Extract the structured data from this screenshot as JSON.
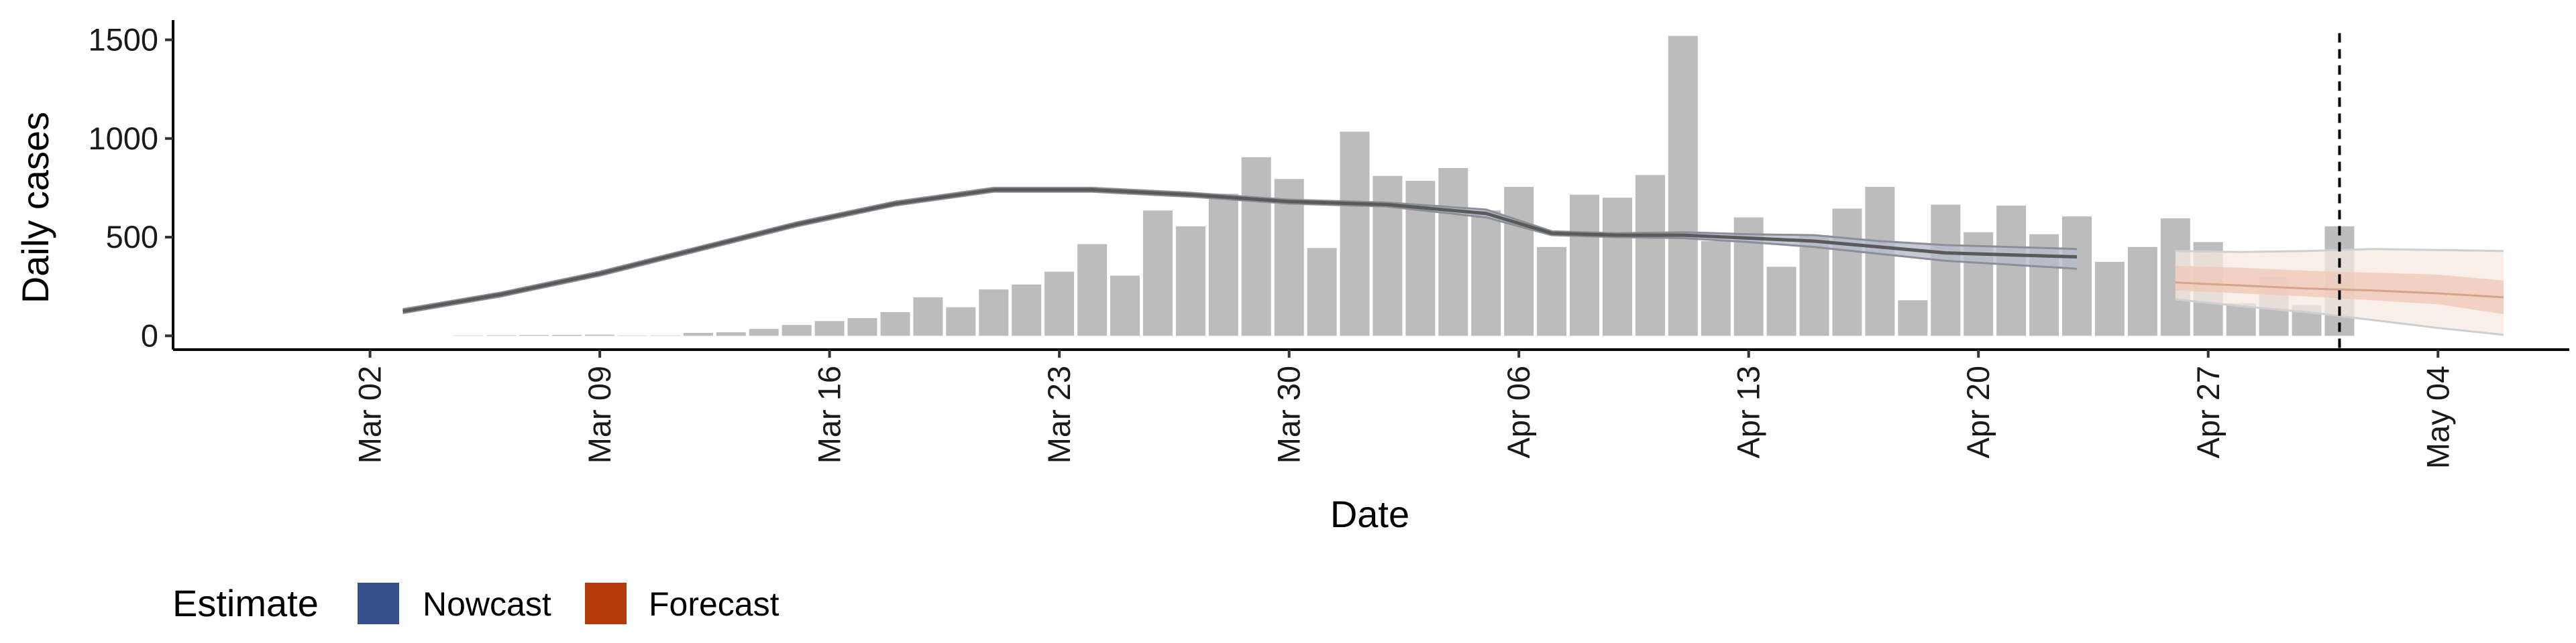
{
  "chart_data": {
    "type": "bar",
    "title": "",
    "xlabel": "Date",
    "ylabel": "Daily cases",
    "x_tick_labels": [
      "Mar 02",
      "Mar 09",
      "Mar 16",
      "Mar 23",
      "Mar 30",
      "Apr 06",
      "Apr 13",
      "Apr 20",
      "Apr 27",
      "May 04"
    ],
    "x_tick_dates": [
      "2020-03-02",
      "2020-03-09",
      "2020-03-16",
      "2020-03-23",
      "2020-03-30",
      "2020-04-06",
      "2020-04-13",
      "2020-04-20",
      "2020-04-27",
      "2020-05-04"
    ],
    "y_ticks": [
      0,
      500,
      1000,
      1500
    ],
    "xlim": [
      "2020-02-25",
      "2020-05-08"
    ],
    "ylim": [
      -70,
      1600
    ],
    "grid": false,
    "reference_line_date": "2020-05-01",
    "legend": {
      "title": "Estimate",
      "position": "bottom-left",
      "entries": [
        {
          "label": "Nowcast",
          "color": "#35508a"
        },
        {
          "label": "Forecast",
          "color": "#b33a0b"
        }
      ]
    },
    "colors": {
      "bars": "#bcbcbc",
      "estimate_line": "#5a5a5a",
      "estimate_band": "#b5bccb",
      "forecast_outer": "#f7e8e0",
      "forecast_inner": "#eec9b8",
      "forecast_line": "#d6a48d",
      "reference_line": "#000000"
    },
    "bars": {
      "start_date": "2020-03-05",
      "values": [
        2,
        3,
        4,
        5,
        6,
        2,
        2,
        15,
        18,
        35,
        55,
        75,
        90,
        120,
        195,
        145,
        235,
        260,
        325,
        465,
        305,
        635,
        555,
        720,
        905,
        795,
        445,
        1035,
        810,
        785,
        850,
        635,
        755,
        450,
        715,
        700,
        815,
        1520,
        480,
        600,
        350,
        510,
        645,
        755,
        180,
        665,
        525,
        660,
        515,
        605,
        375,
        450,
        595,
        475,
        165,
        295,
        155,
        555
      ]
    },
    "estimate": {
      "x": [
        "2020-03-03",
        "2020-03-06",
        "2020-03-09",
        "2020-03-12",
        "2020-03-15",
        "2020-03-18",
        "2020-03-21",
        "2020-03-24",
        "2020-03-27",
        "2020-03-30",
        "2020-04-02",
        "2020-04-05",
        "2020-04-07",
        "2020-04-09",
        "2020-04-11",
        "2020-04-13",
        "2020-04-15",
        "2020-04-17",
        "2020-04-19",
        "2020-04-21",
        "2020-04-23"
      ],
      "median": [
        125,
        210,
        315,
        440,
        565,
        670,
        740,
        740,
        715,
        680,
        665,
        620,
        520,
        510,
        510,
        495,
        480,
        450,
        420,
        410,
        400
      ],
      "upper": [
        135,
        220,
        325,
        450,
        575,
        680,
        750,
        750,
        725,
        690,
        675,
        640,
        530,
        520,
        525,
        515,
        510,
        480,
        460,
        450,
        440
      ],
      "lower": [
        115,
        200,
        305,
        430,
        555,
        660,
        730,
        730,
        705,
        670,
        655,
        600,
        510,
        500,
        495,
        475,
        450,
        415,
        380,
        360,
        340
      ]
    },
    "forecast": {
      "x": [
        "2020-04-26",
        "2020-04-28",
        "2020-04-30",
        "2020-05-02",
        "2020-05-04",
        "2020-05-06"
      ],
      "median": [
        270,
        255,
        240,
        230,
        215,
        195
      ],
      "inner_upper": [
        355,
        345,
        330,
        320,
        310,
        280
      ],
      "inner_lower": [
        230,
        215,
        200,
        180,
        160,
        110
      ],
      "outer_upper": [
        430,
        425,
        430,
        440,
        435,
        430
      ],
      "outer_lower": [
        185,
        150,
        120,
        80,
        40,
        5
      ]
    }
  }
}
